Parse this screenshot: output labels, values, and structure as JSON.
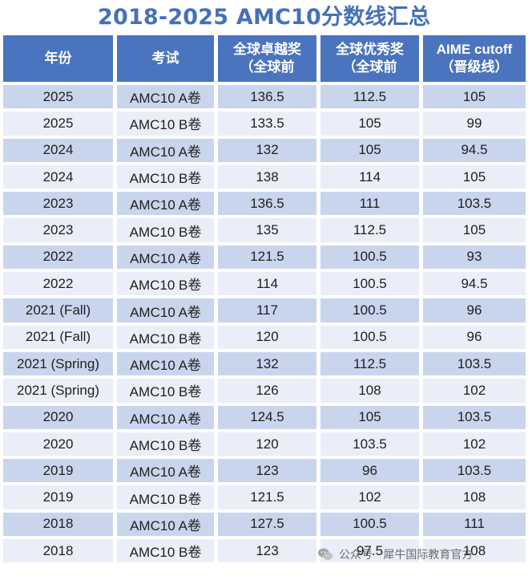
{
  "title": "2018-2025 AMC10分数线汇总",
  "headers": [
    {
      "line1": "年份",
      "line2": ""
    },
    {
      "line1": "考试",
      "line2": ""
    },
    {
      "line1": "全球卓越奖",
      "line2": "（全球前"
    },
    {
      "line1": "全球优秀奖",
      "line2": "（全球前"
    },
    {
      "line1": "AIME cutoff",
      "line2": "（晋级线）"
    }
  ],
  "rows": [
    {
      "year": "2025",
      "exam": "AMC10 A卷",
      "distinction": "136.5",
      "honor": "112.5",
      "aime": "105"
    },
    {
      "year": "2025",
      "exam": "AMC10 B卷",
      "distinction": "133.5",
      "honor": "105",
      "aime": "99"
    },
    {
      "year": "2024",
      "exam": "AMC10 A卷",
      "distinction": "132",
      "honor": "105",
      "aime": "94.5"
    },
    {
      "year": "2024",
      "exam": "AMC10 B卷",
      "distinction": "138",
      "honor": "114",
      "aime": "105"
    },
    {
      "year": "2023",
      "exam": "AMC10 A卷",
      "distinction": "136.5",
      "honor": "111",
      "aime": "103.5"
    },
    {
      "year": "2023",
      "exam": "AMC10 B卷",
      "distinction": "135",
      "honor": "112.5",
      "aime": "105"
    },
    {
      "year": "2022",
      "exam": "AMC10 A卷",
      "distinction": "121.5",
      "honor": "100.5",
      "aime": "93"
    },
    {
      "year": "2022",
      "exam": "AMC10 B卷",
      "distinction": "114",
      "honor": "100.5",
      "aime": "94.5"
    },
    {
      "year": "2021 (Fall)",
      "exam": "AMC10 A卷",
      "distinction": "117",
      "honor": "100.5",
      "aime": "96"
    },
    {
      "year": "2021 (Fall)",
      "exam": "AMC10 B卷",
      "distinction": "120",
      "honor": "100.5",
      "aime": "96"
    },
    {
      "year": "2021 (Spring)",
      "exam": "AMC10 A卷",
      "distinction": "132",
      "honor": "112.5",
      "aime": "103.5"
    },
    {
      "year": "2021 (Spring)",
      "exam": "AMC10 B卷",
      "distinction": "126",
      "honor": "108",
      "aime": "102"
    },
    {
      "year": "2020",
      "exam": "AMC10 A卷",
      "distinction": "124.5",
      "honor": "105",
      "aime": "103.5"
    },
    {
      "year": "2020",
      "exam": "AMC10 B卷",
      "distinction": "120",
      "honor": "103.5",
      "aime": "102"
    },
    {
      "year": "2019",
      "exam": "AMC10 A卷",
      "distinction": "123",
      "honor": "96",
      "aime": "103.5"
    },
    {
      "year": "2019",
      "exam": "AMC10 B卷",
      "distinction": "121.5",
      "honor": "102",
      "aime": "108"
    },
    {
      "year": "2018",
      "exam": "AMC10 A卷",
      "distinction": "127.5",
      "honor": "100.5",
      "aime": "111"
    },
    {
      "year": "2018",
      "exam": "AMC10 B卷",
      "distinction": "123",
      "honor": "97.5",
      "aime": "108"
    }
  ],
  "watermark": {
    "text": "公众号 · 犀牛国际教育官方",
    "icon": "wechat-icon"
  },
  "colors": {
    "title": "#4670b8",
    "header_bg": "#4a74bd",
    "row_odd_bg": "#c9d5ec",
    "row_even_bg": "#e9eef8"
  }
}
